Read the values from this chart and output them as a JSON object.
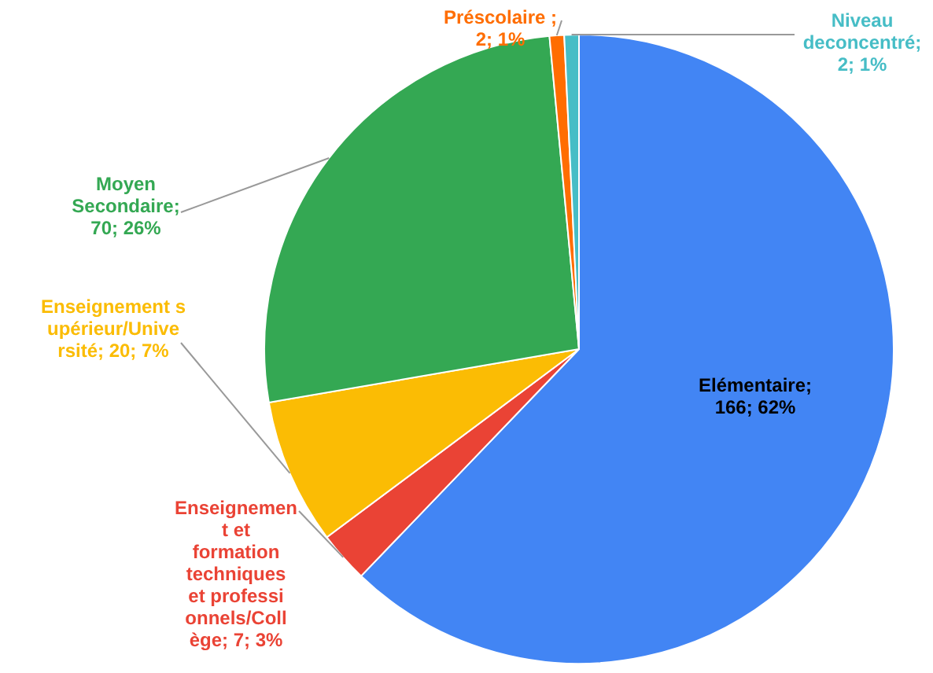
{
  "chart_data": {
    "type": "pie",
    "categories": [
      "Elémentaire",
      "Enseignement et formation techniques et professionnels/Collège",
      "Enseignement supérieur/Université",
      "Moyen Secondaire",
      "Préscolaire",
      "Niveau deconcentré"
    ],
    "values": [
      166,
      7,
      20,
      70,
      2,
      2
    ],
    "colors": [
      "#4285f4",
      "#ea4335",
      "#fbbc04",
      "#34a853",
      "#ff6d01",
      "#46bdc6"
    ],
    "value_labels": [
      "; 166; 62%",
      "; 7; 3%",
      "; 20; 7%",
      "; 70; 26%",
      " ; 2; 1%",
      "; 2; 1%"
    ],
    "legend": false
  }
}
